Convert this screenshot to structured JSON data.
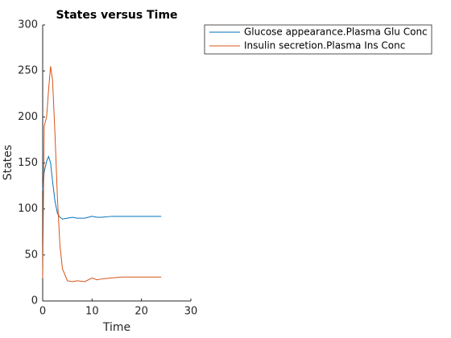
{
  "chart_data": {
    "type": "line",
    "title": "States versus Time",
    "xlabel": "Time",
    "ylabel": "States",
    "x": [
      0,
      0.3,
      0.8,
      1.2,
      1.6,
      2,
      2.5,
      3,
      3.5,
      4,
      5,
      6,
      7,
      8.5,
      10,
      11,
      12,
      14,
      16,
      20,
      24
    ],
    "series": [
      {
        "name": "Glucose appearance.Plasma Glu Conc",
        "color": "#0072bd",
        "values": [
          120,
          140,
          152,
          157,
          150,
          130,
          108,
          95,
          91,
          89,
          90,
          91,
          90,
          90,
          92,
          91,
          91,
          92,
          92,
          92,
          92
        ]
      },
      {
        "name": "Insulin secretion.Plasma Ins Conc",
        "color": "#d95319",
        "values": [
          25,
          190,
          200,
          230,
          255,
          240,
          180,
          110,
          60,
          35,
          22,
          21,
          22,
          21,
          25,
          23,
          24,
          25,
          26,
          26,
          26
        ]
      }
    ],
    "xlim": [
      0,
      30
    ],
    "xticks": [
      0,
      10,
      20,
      30
    ],
    "ylim": [
      0,
      300
    ],
    "yticks": [
      0,
      50,
      100,
      150,
      200,
      250,
      300
    ],
    "legend": "upper-right"
  }
}
